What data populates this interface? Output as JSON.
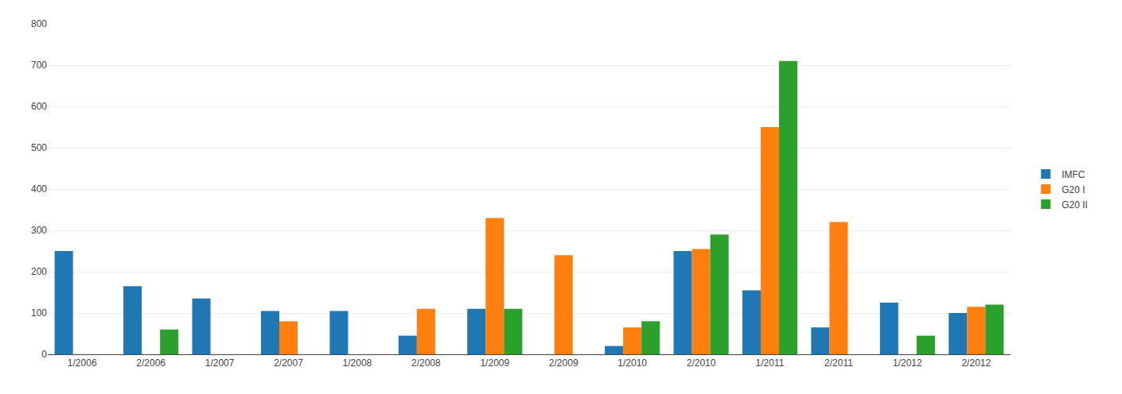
{
  "chart_data": {
    "type": "bar",
    "categories": [
      "1/2006",
      "2/2006",
      "1/2007",
      "2/2007",
      "1/2008",
      "2/2008",
      "1/2009",
      "2/2009",
      "1/2010",
      "2/2010",
      "1/2011",
      "2/2011",
      "1/2012",
      "2/2012"
    ],
    "series": [
      {
        "name": "IMFC",
        "values": [
          250,
          165,
          135,
          105,
          105,
          45,
          110,
          0,
          20,
          250,
          155,
          65,
          125,
          100
        ]
      },
      {
        "name": "G20 I",
        "values": [
          0,
          0,
          0,
          80,
          0,
          110,
          330,
          240,
          65,
          255,
          550,
          320,
          0,
          115
        ]
      },
      {
        "name": "G20 II",
        "values": [
          0,
          60,
          0,
          0,
          0,
          0,
          110,
          0,
          80,
          290,
          710,
          0,
          45,
          120
        ]
      }
    ],
    "ylim": [
      0,
      800
    ],
    "yticks": [
      0,
      100,
      200,
      300,
      400,
      500,
      600,
      700,
      800
    ],
    "grid": true,
    "legend": "right"
  }
}
